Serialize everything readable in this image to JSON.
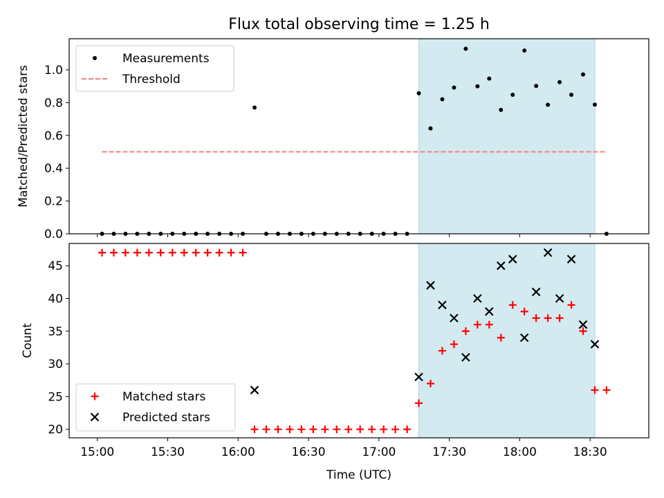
{
  "chart_data": [
    {
      "type": "scatter",
      "title": "Flux total observing time = 1.25 h",
      "xlabel": "",
      "ylabel": "Matched/Predicted stars",
      "ylim": [
        0,
        1.19
      ],
      "yticks": [
        {
          "v": 0.0,
          "label": "0.0"
        },
        {
          "v": 0.2,
          "label": "0.2"
        },
        {
          "v": 0.4,
          "label": "0.4"
        },
        {
          "v": 0.6,
          "label": "0.6"
        },
        {
          "v": 0.8,
          "label": "0.8"
        },
        {
          "v": 1.0,
          "label": "1.0"
        }
      ],
      "shaded_interval": [
        "17:17",
        "18:32"
      ],
      "shade_color": "#d3eaf0",
      "series": [
        {
          "name": "Measurements",
          "marker": "dot",
          "color": "#000000",
          "x": [
            "15:02",
            "15:07",
            "15:12",
            "15:17",
            "15:22",
            "15:27",
            "15:32",
            "15:37",
            "15:42",
            "15:47",
            "15:52",
            "15:57",
            "16:02",
            "16:07",
            "16:12",
            "16:17",
            "16:22",
            "16:27",
            "16:32",
            "16:37",
            "16:42",
            "16:47",
            "16:52",
            "16:57",
            "17:02",
            "17:07",
            "17:12",
            "17:17",
            "17:22",
            "17:27",
            "17:32",
            "17:37",
            "17:42",
            "17:47",
            "17:52",
            "17:57",
            "18:02",
            "18:07",
            "18:12",
            "18:17",
            "18:22",
            "18:27",
            "18:32",
            "18:37"
          ],
          "y": [
            0,
            0,
            0,
            0,
            0,
            0,
            0,
            0,
            0,
            0,
            0,
            0,
            0,
            0.77,
            0,
            0,
            0,
            0,
            0,
            0,
            0,
            0,
            0,
            0,
            0,
            0,
            0,
            0.857,
            0.643,
            0.821,
            0.892,
            1.129,
            0.9,
            0.947,
            0.756,
            0.848,
            1.118,
            0.902,
            0.787,
            0.925,
            0.848,
            0.972,
            0.788,
            0
          ]
        },
        {
          "name": "Threshold",
          "style": "dashed-line",
          "color": "#f08080",
          "x": [
            "15:02",
            "18:37"
          ],
          "y": [
            0.5,
            0.5
          ]
        }
      ],
      "legend": {
        "placement": "upper-left"
      }
    },
    {
      "type": "scatter",
      "xlabel": "Time (UTC)",
      "ylabel": "Count",
      "ylim": [
        18.7,
        48.4
      ],
      "xlim": [
        "14:48",
        "18:55"
      ],
      "yticks": [
        {
          "v": 20,
          "label": "20"
        },
        {
          "v": 25,
          "label": "25"
        },
        {
          "v": 30,
          "label": "30"
        },
        {
          "v": 35,
          "label": "35"
        },
        {
          "v": 40,
          "label": "40"
        },
        {
          "v": 45,
          "label": "45"
        }
      ],
      "xticks": [
        {
          "v": "15:00",
          "label": "15:00"
        },
        {
          "v": "15:30",
          "label": "15:30"
        },
        {
          "v": "16:00",
          "label": "16:00"
        },
        {
          "v": "16:30",
          "label": "16:30"
        },
        {
          "v": "17:00",
          "label": "17:00"
        },
        {
          "v": "17:30",
          "label": "17:30"
        },
        {
          "v": "18:00",
          "label": "18:00"
        },
        {
          "v": "18:30",
          "label": "18:30"
        }
      ],
      "shaded_interval": [
        "17:17",
        "18:32"
      ],
      "shade_color": "#d3eaf0",
      "series": [
        {
          "name": "Matched stars",
          "marker": "plus",
          "color": "#ff0000",
          "x": [
            "15:02",
            "15:07",
            "15:12",
            "15:17",
            "15:22",
            "15:27",
            "15:32",
            "15:37",
            "15:42",
            "15:47",
            "15:52",
            "15:57",
            "16:02",
            "16:07",
            "16:12",
            "16:17",
            "16:22",
            "16:27",
            "16:32",
            "16:37",
            "16:42",
            "16:47",
            "16:52",
            "16:57",
            "17:02",
            "17:07",
            "17:12",
            "17:17",
            "17:22",
            "17:27",
            "17:32",
            "17:37",
            "17:42",
            "17:47",
            "17:52",
            "17:57",
            "18:02",
            "18:07",
            "18:12",
            "18:17",
            "18:22",
            "18:27",
            "18:32",
            "18:37"
          ],
          "y": [
            47,
            47,
            47,
            47,
            47,
            47,
            47,
            47,
            47,
            47,
            47,
            47,
            47,
            20,
            20,
            20,
            20,
            20,
            20,
            20,
            20,
            20,
            20,
            20,
            20,
            20,
            20,
            24,
            27,
            32,
            33,
            35,
            36,
            36,
            34,
            39,
            38,
            37,
            37,
            37,
            39,
            35,
            26,
            26
          ]
        },
        {
          "name": "Predicted stars",
          "marker": "x",
          "color": "#000000",
          "x": [
            "16:07",
            "17:17",
            "17:22",
            "17:27",
            "17:32",
            "17:37",
            "17:42",
            "17:47",
            "17:52",
            "17:57",
            "18:02",
            "18:07",
            "18:12",
            "18:17",
            "18:22",
            "18:27",
            "18:32"
          ],
          "y": [
            26,
            28,
            42,
            39,
            37,
            31,
            40,
            38,
            45,
            46,
            34,
            41,
            47,
            40,
            46,
            36,
            33
          ]
        }
      ],
      "legend": {
        "placement": "lower-left"
      }
    }
  ]
}
